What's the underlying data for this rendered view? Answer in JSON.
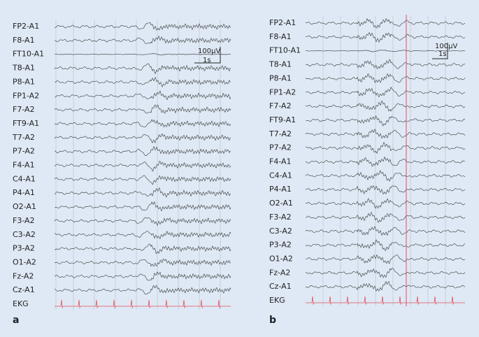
{
  "panels": [
    {
      "label": "a",
      "channels": [
        "FP2-A1",
        "F8-A1",
        "FT10-A1",
        "T8-A1",
        "P8-A1",
        "FP1-A2",
        "F7-A2",
        "FT9-A1",
        "T7-A2",
        "P7-A2",
        "F4-A1",
        "C4-A1",
        "P4-A1",
        "O2-A1",
        "F3-A2",
        "C3-A2",
        "P3-A2",
        "O1-A2",
        "Fz-A2",
        "Cz-A1",
        "EKG"
      ],
      "scale_bar": {
        "amplitude": "100µV",
        "time": "1s"
      }
    },
    {
      "label": "b",
      "channels": [
        "FP2-A1",
        "F8-A1",
        "FT10-A1",
        "T8-A1",
        "P8-A1",
        "FP1-A2",
        "F7-A2",
        "FT9-A1",
        "T7-A2",
        "P7-A2",
        "F4-A1",
        "C4-A1",
        "P4-A1",
        "O2-A1",
        "F3-A2",
        "C3-A2",
        "P3-A2",
        "O1-A2",
        "Fz-A2",
        "Cz-A1",
        "EKG"
      ],
      "scale_bar": {
        "amplitude": "100µV",
        "time": "1s"
      }
    }
  ]
}
